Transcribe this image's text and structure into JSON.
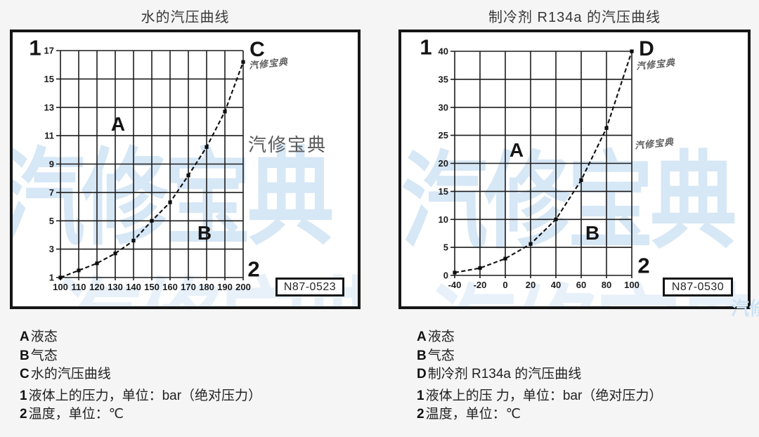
{
  "watermark": {
    "text": "汽修宝典",
    "blue": "#cde2f5",
    "gray": "#5a5a5a",
    "dark": "#4f4f4f"
  },
  "chart_data": [
    {
      "type": "line",
      "title": "水的汽压曲线",
      "curve_label": "C",
      "region_liquid_label": "A",
      "region_gas_label": "B",
      "axis_marker_pressure": "1",
      "axis_marker_temp": "2",
      "y_axis_meaning": "液体上的压力，单位：bar（绝对压力）",
      "x_axis_meaning": "温度，单位：℃",
      "ref_number": "N87-0523",
      "grid": true,
      "legend_position": "none",
      "xlim": [
        100,
        200
      ],
      "ylim": [
        1,
        17
      ],
      "x_ticks": [
        100,
        110,
        120,
        130,
        140,
        150,
        160,
        170,
        180,
        190,
        200
      ],
      "y_ticks": [
        1,
        3,
        5,
        7,
        9,
        11,
        13,
        15,
        17
      ],
      "x": [
        100,
        110,
        120,
        130,
        140,
        150,
        160,
        170,
        180,
        190,
        200
      ],
      "series": [
        {
          "name": "水的汽压曲线 (C)",
          "values": [
            1.0,
            1.5,
            2.0,
            2.7,
            3.6,
            5.0,
            6.3,
            8.2,
            10.2,
            12.7,
            16.2
          ]
        }
      ]
    },
    {
      "type": "line",
      "title": "制冷剂 R134a 的汽压曲线",
      "curve_label": "D",
      "region_liquid_label": "A",
      "region_gas_label": "B",
      "axis_marker_pressure": "1",
      "axis_marker_temp": "2",
      "y_axis_meaning": "液体上的压 力，单位：bar（绝对压力）",
      "x_axis_meaning": "温度，单位：℃",
      "ref_number": "N87-0530",
      "grid": true,
      "legend_position": "none",
      "xlim": [
        -40,
        100
      ],
      "ylim": [
        0,
        40
      ],
      "x_ticks": [
        -40,
        -20,
        0,
        20,
        40,
        60,
        80,
        100
      ],
      "y_ticks": [
        0,
        5,
        10,
        15,
        20,
        25,
        30,
        35,
        40
      ],
      "x": [
        -40,
        -20,
        0,
        20,
        40,
        60,
        80,
        100
      ],
      "series": [
        {
          "name": "制冷剂 R134a 的汽压曲线 (D)",
          "values": [
            0.5,
            1.3,
            3.0,
            5.6,
            10.0,
            17.0,
            26.3,
            40.0
          ]
        }
      ]
    }
  ],
  "legends": [
    {
      "rows": [
        {
          "k": "A",
          "t": "液态"
        },
        {
          "k": "B",
          "t": "气态"
        },
        {
          "k": "C",
          "t": "水的汽压曲线"
        },
        {
          "k": "1",
          "t": "液体上的压力，单位：bar（绝对压力）"
        },
        {
          "k": "2",
          "t": "温度，单位：℃"
        }
      ]
    },
    {
      "rows": [
        {
          "k": "A",
          "t": "液态"
        },
        {
          "k": "B",
          "t": "气态"
        },
        {
          "k": "D",
          "t": "制冷剂 R134a 的汽压曲线"
        },
        {
          "k": "1",
          "t": "液体上的压 力，单位：bar（绝对压力）"
        },
        {
          "k": "2",
          "t": "温度，单位：℃"
        }
      ]
    }
  ]
}
